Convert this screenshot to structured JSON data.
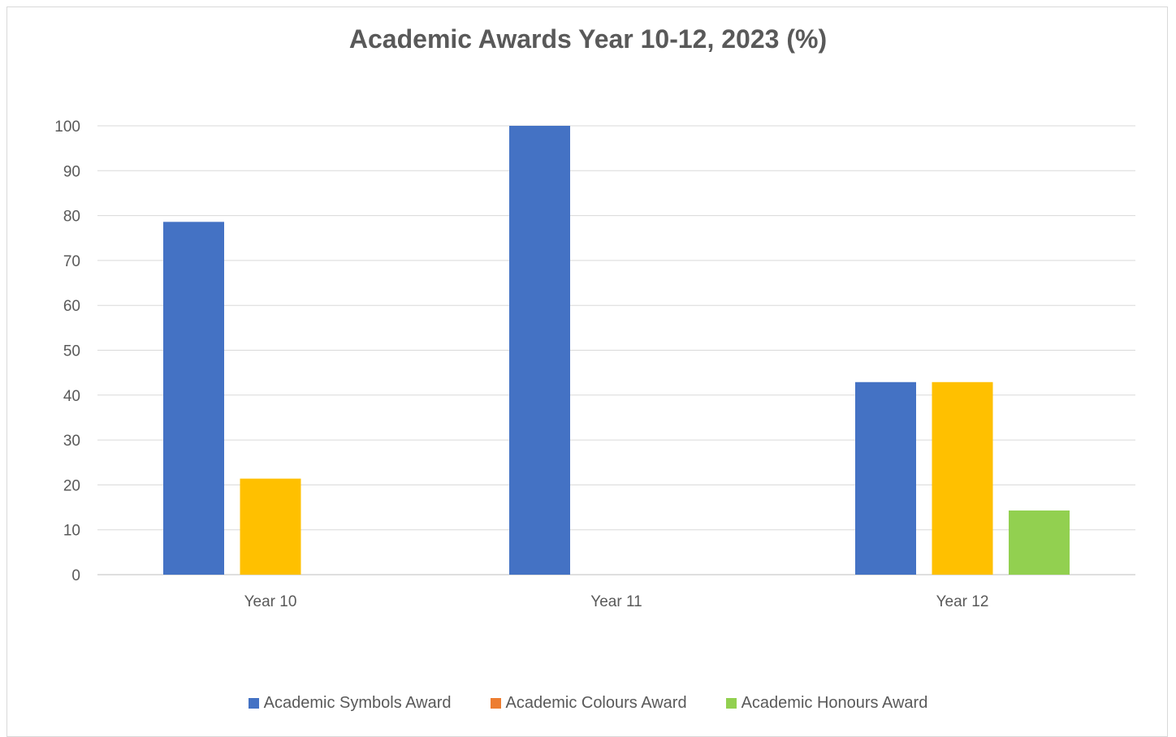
{
  "chart_data": {
    "type": "bar",
    "title": "Academic Awards Year 10-12, 2023 (%)",
    "xlabel": "",
    "ylabel": "",
    "categories": [
      "Year 10",
      "Year 11",
      "Year 12"
    ],
    "ylim": [
      0,
      100
    ],
    "yticks": [
      0,
      10,
      20,
      30,
      40,
      50,
      60,
      70,
      80,
      90,
      100
    ],
    "grid": true,
    "legend_position": "bottom",
    "series": [
      {
        "name": "Academic Symbols Award",
        "color": "#4472c4",
        "values": [
          78.6,
          100,
          42.9
        ]
      },
      {
        "name": "Academic Colours Award",
        "color": "#ffc000",
        "legend_color": "#ed7d31",
        "values": [
          21.4,
          0,
          42.9
        ]
      },
      {
        "name": "Academic Honours Award",
        "color": "#92d050",
        "values": [
          0,
          0,
          14.3
        ]
      }
    ]
  }
}
